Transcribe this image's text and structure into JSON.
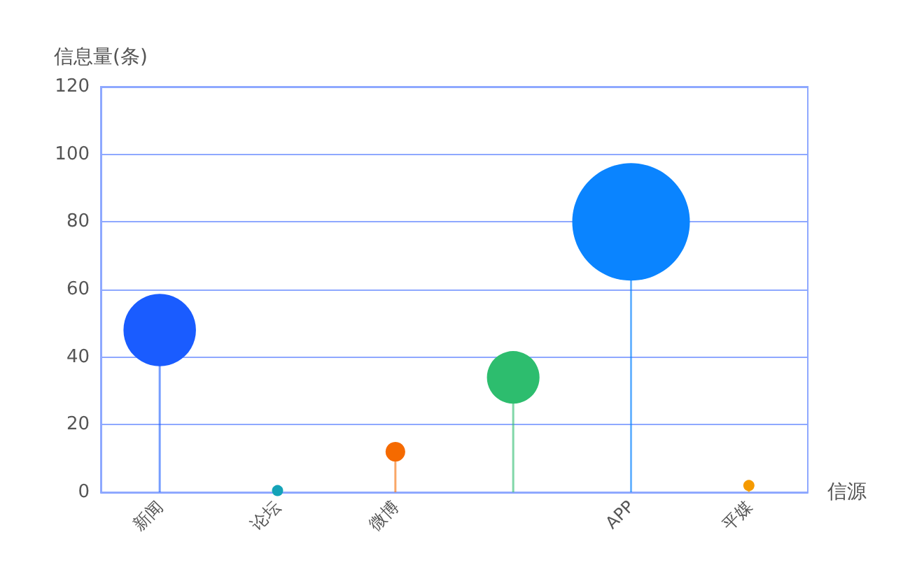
{
  "chart_data": {
    "type": "lollipop",
    "xlabel": "信源",
    "ylabel": "信息量(条)",
    "categories": [
      "新闻",
      "论坛",
      "微博",
      null,
      "APP",
      "平媒"
    ],
    "values": [
      48,
      0.5,
      12,
      34,
      80,
      2
    ],
    "sizes": [
      0.38,
      0.009,
      0.028,
      0.2,
      1,
      0.009
    ],
    "colors": [
      "#1a5cff",
      "#14a3b8",
      "#f56a00",
      "#2dbd6e",
      "#0a84ff",
      "#f59a00"
    ],
    "ylim": [
      0,
      120
    ],
    "yticks": [
      0,
      20,
      40,
      60,
      80,
      100,
      120
    ],
    "grid": "y"
  }
}
